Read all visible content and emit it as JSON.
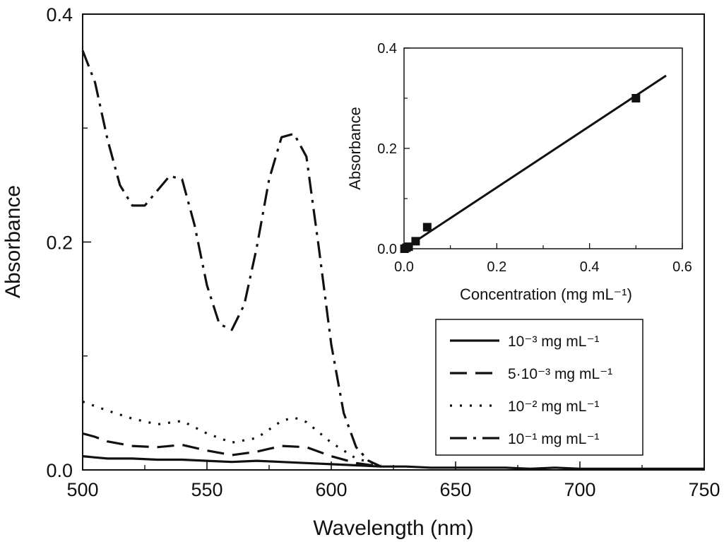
{
  "chart_data": [
    {
      "type": "line",
      "xlabel": "Wavelength (nm)",
      "ylabel": "Absorbance",
      "xlim": [
        500,
        750
      ],
      "ylim": [
        0,
        0.4
      ],
      "x_ticks": [
        500,
        550,
        600,
        650,
        700,
        750
      ],
      "y_ticks": [
        "0.0",
        "0.2",
        "0.4"
      ],
      "legend_position": "lower-right",
      "series": [
        {
          "name": "10⁻³ mg mL⁻¹",
          "dash": "solid",
          "x": [
            500,
            505,
            510,
            520,
            530,
            540,
            550,
            560,
            570,
            580,
            590,
            600,
            610,
            620,
            630,
            640,
            650,
            660,
            670,
            680,
            690,
            700,
            710,
            720,
            730,
            740,
            750
          ],
          "y": [
            0.012,
            0.011,
            0.01,
            0.01,
            0.009,
            0.009,
            0.008,
            0.007,
            0.008,
            0.007,
            0.006,
            0.005,
            0.004,
            0.003,
            0.003,
            0.002,
            0.002,
            0.002,
            0.002,
            0.001,
            0.002,
            0.001,
            0.001,
            0.001,
            0.001,
            0.001,
            0.001
          ]
        },
        {
          "name": "5·10⁻³ mg mL⁻¹",
          "dash": "dashed",
          "x": [
            500,
            505,
            510,
            520,
            530,
            540,
            550,
            560,
            570,
            580,
            590,
            600,
            610,
            620
          ],
          "y": [
            0.032,
            0.029,
            0.025,
            0.021,
            0.02,
            0.022,
            0.017,
            0.013,
            0.016,
            0.021,
            0.02,
            0.012,
            0.006,
            0.003
          ]
        },
        {
          "name": "10⁻² mg mL⁻¹",
          "dash": "dotted",
          "x": [
            500,
            510,
            520,
            530,
            540,
            550,
            560,
            570,
            580,
            585,
            590,
            600,
            610,
            620
          ],
          "y": [
            0.06,
            0.052,
            0.045,
            0.04,
            0.043,
            0.032,
            0.024,
            0.028,
            0.043,
            0.046,
            0.042,
            0.024,
            0.01,
            0.004
          ]
        },
        {
          "name": "10⁻¹ mg mL⁻¹",
          "dash": "dashdot",
          "x": [
            500,
            505,
            510,
            515,
            520,
            525,
            530,
            535,
            540,
            545,
            550,
            555,
            560,
            565,
            570,
            575,
            580,
            585,
            590,
            595,
            600,
            605,
            610,
            615,
            620
          ],
          "y": [
            0.368,
            0.34,
            0.29,
            0.25,
            0.232,
            0.232,
            0.245,
            0.258,
            0.255,
            0.215,
            0.162,
            0.128,
            0.123,
            0.145,
            0.195,
            0.255,
            0.292,
            0.295,
            0.275,
            0.195,
            0.11,
            0.05,
            0.02,
            0.008,
            0.003
          ]
        }
      ]
    },
    {
      "type": "scatter",
      "xlabel": "Concentration (mg mL⁻¹)",
      "ylabel": "Absorbance",
      "xlim": [
        0,
        0.6
      ],
      "ylim": [
        0,
        0.4
      ],
      "x_ticks": [
        "0.0",
        "0.2",
        "0.4",
        "0.6"
      ],
      "y_ticks": [
        "0.0",
        "0.2",
        "0.4"
      ],
      "points": {
        "x": [
          0.001,
          0.005,
          0.01,
          0.025,
          0.05,
          0.5
        ],
        "y": [
          0.0,
          0.002,
          0.004,
          0.015,
          0.043,
          0.3
        ]
      },
      "fit_line": {
        "x": [
          0.0,
          0.565
        ],
        "y": [
          0.0,
          0.345
        ]
      }
    }
  ]
}
